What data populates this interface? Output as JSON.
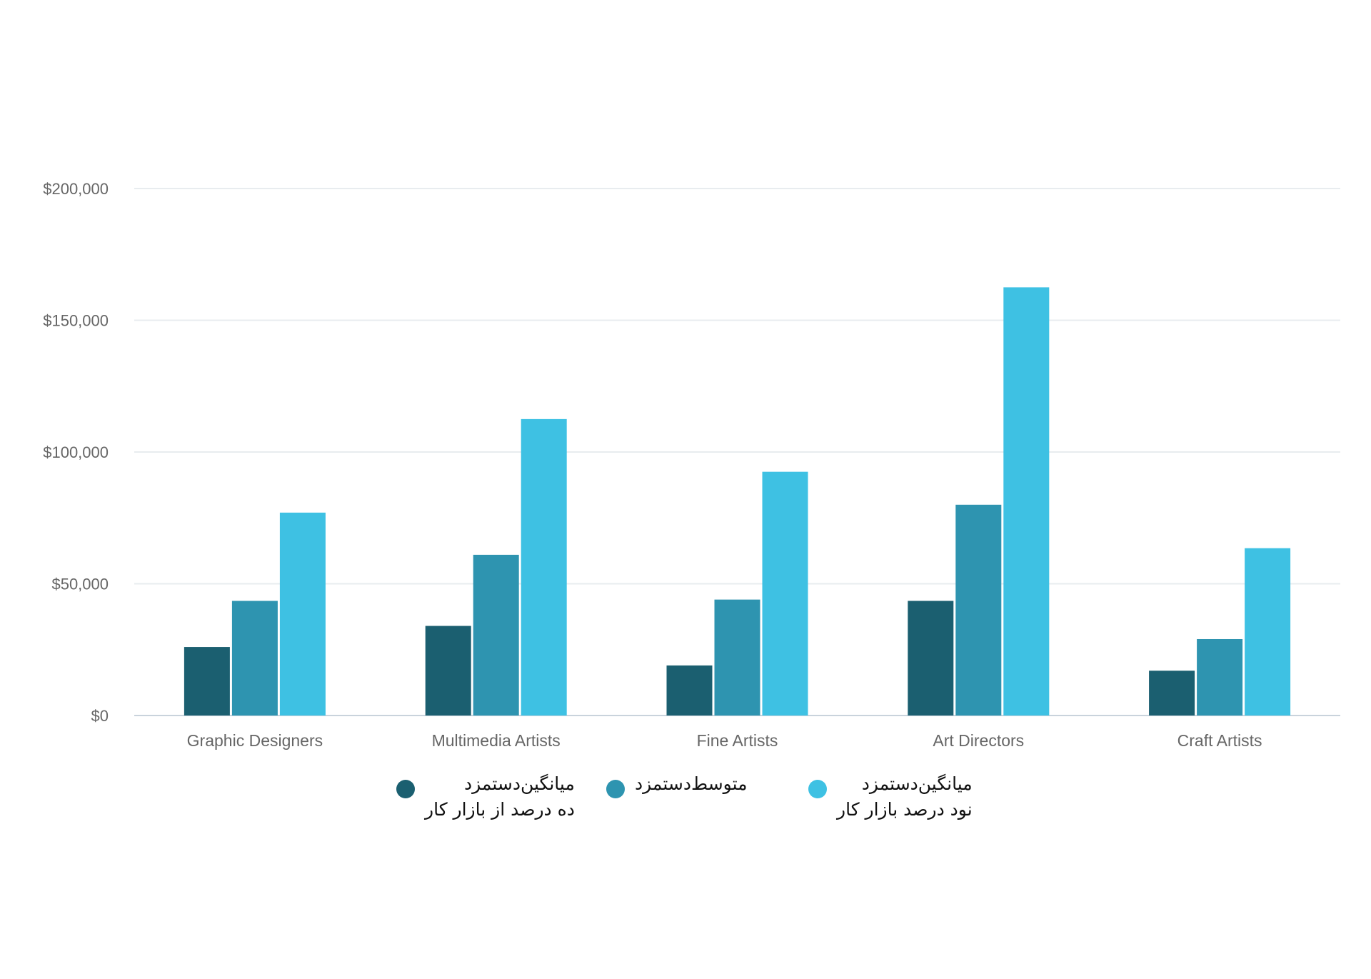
{
  "chart_data": {
    "type": "bar",
    "title": "",
    "xlabel": "",
    "ylabel": "",
    "categories": [
      "Graphic Designers",
      "Multimedia Artists",
      "Fine Artists",
      "Art Directors",
      "Craft Artists"
    ],
    "series": [
      {
        "name": "میانگین‌دستمزد\nده درصد از بازار کار",
        "color": "#1b5f70",
        "values": [
          26000,
          34000,
          19000,
          43500,
          17000
        ]
      },
      {
        "name": "متوسط‌دستمزد",
        "color": "#2e94b0",
        "values": [
          43500,
          61000,
          44000,
          80000,
          29000
        ]
      },
      {
        "name": "میانگین‌دستمزد\nنود درصد بازار کار",
        "color": "#3ec1e3",
        "values": [
          77000,
          112500,
          92500,
          162500,
          63500
        ]
      }
    ],
    "ylim": [
      0,
      200000
    ],
    "yticks": [
      0,
      50000,
      100000,
      150000,
      200000
    ],
    "ytick_labels": [
      "$0",
      "$50,000",
      "$100,000",
      "$150,000",
      "$200,000"
    ],
    "grid": true,
    "legend_position": "bottom"
  }
}
